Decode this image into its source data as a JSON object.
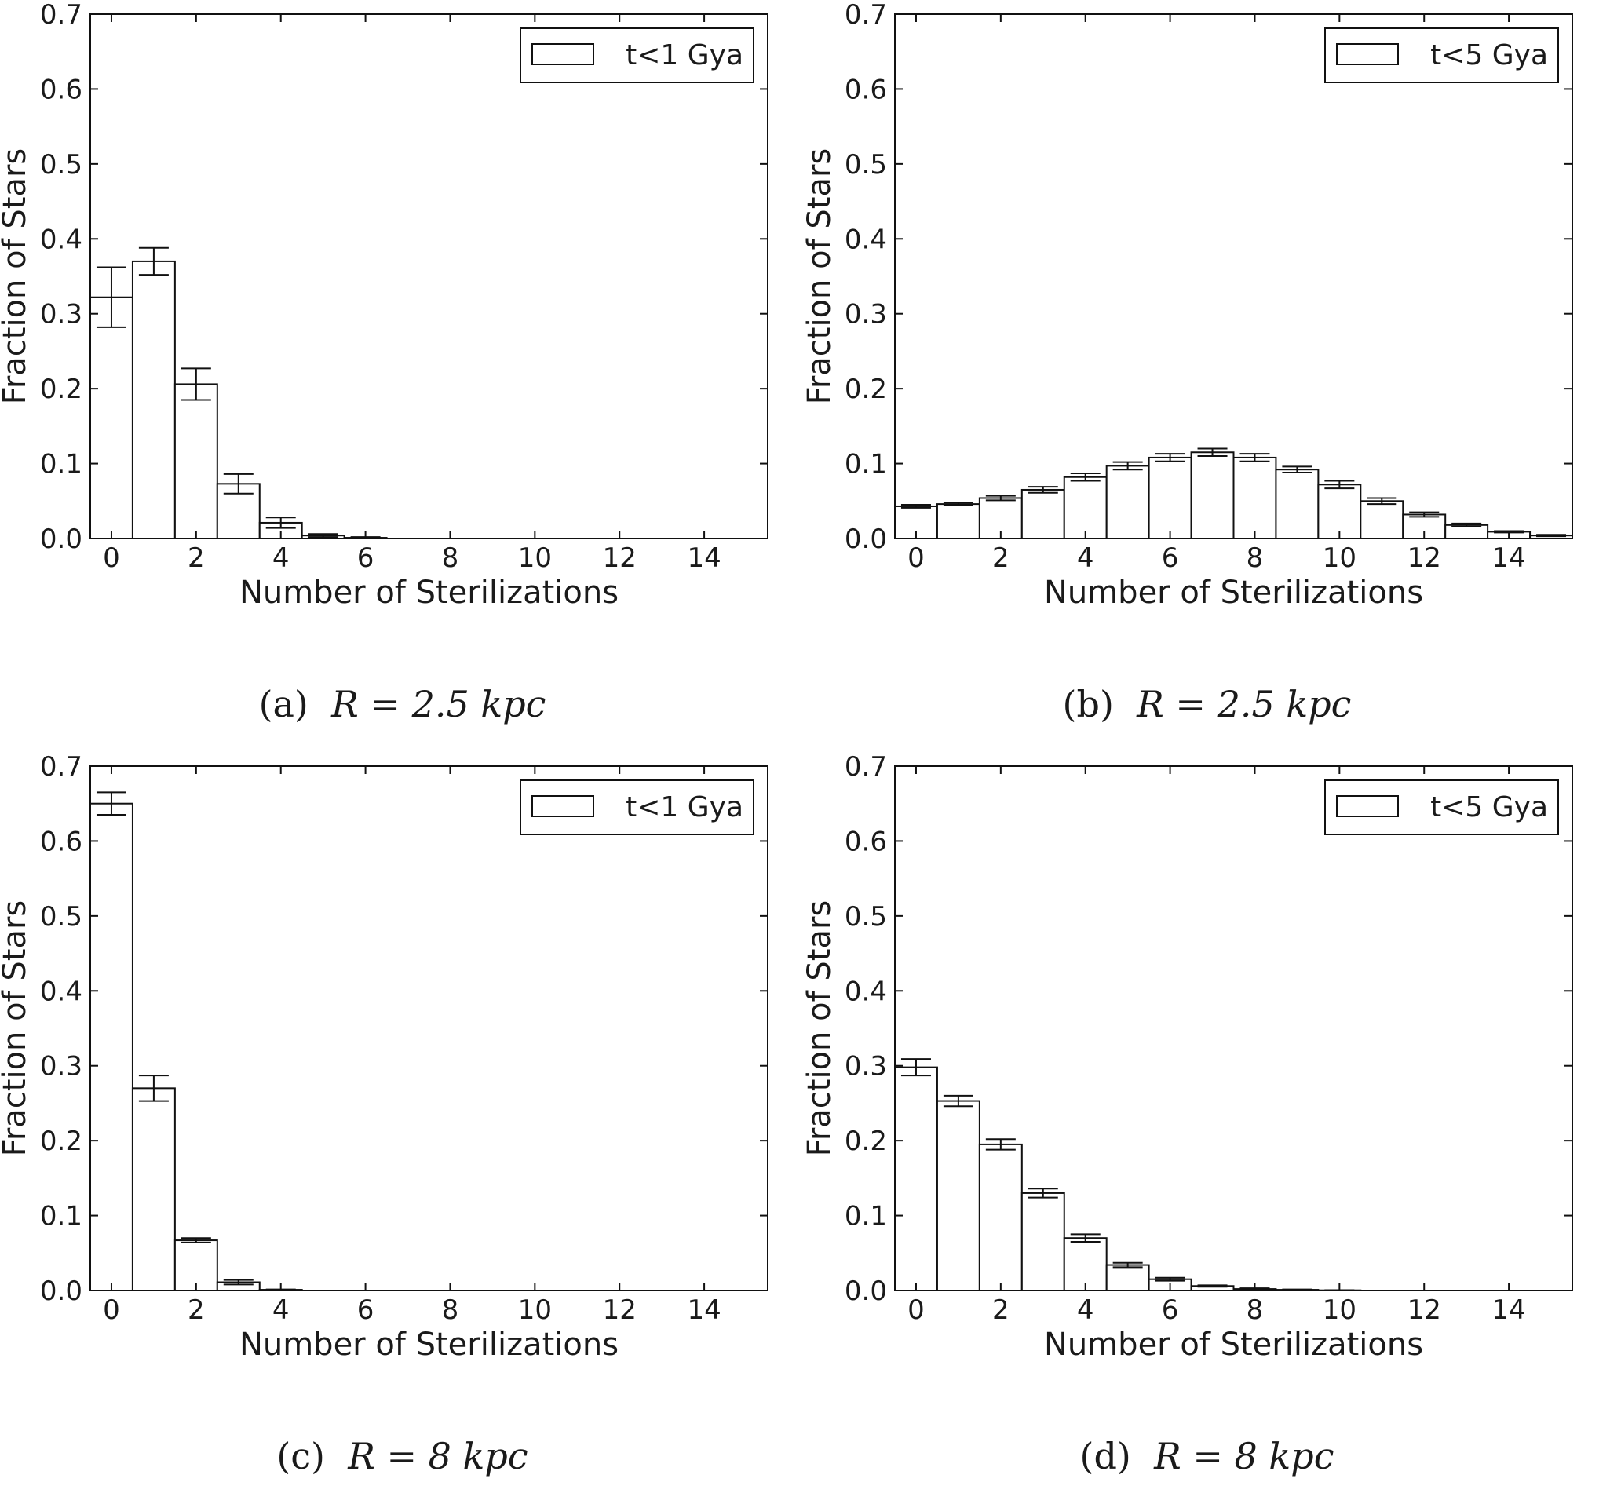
{
  "chart_data": [
    {
      "type": "bar",
      "panel_label": "(a)",
      "caption": "R = 2.5 kpc",
      "legend": "t<1 Gya",
      "legend_position": "top-right",
      "xlabel": "Number of Sterilizations",
      "ylabel": "Fraction of Stars",
      "xlim": [
        -0.5,
        15.5
      ],
      "ylim": [
        0.0,
        0.7
      ],
      "x": [
        0,
        1,
        2,
        3,
        4,
        5,
        6
      ],
      "values": [
        0.322,
        0.37,
        0.206,
        0.073,
        0.021,
        0.004,
        0.001
      ],
      "errors": [
        0.04,
        0.018,
        0.021,
        0.013,
        0.007,
        0.002,
        0.001
      ],
      "xticks": [
        0,
        2,
        4,
        6,
        8,
        10,
        12,
        14
      ],
      "yticks": [
        0.0,
        0.1,
        0.2,
        0.3,
        0.4,
        0.5,
        0.6,
        0.7
      ],
      "ytick_labels": [
        "0.0",
        "0.1",
        "0.2",
        "0.3",
        "0.4",
        "0.5",
        "0.6",
        "0.7"
      ]
    },
    {
      "type": "bar",
      "panel_label": "(b)",
      "caption": "R = 2.5 kpc",
      "legend": "t<5 Gya",
      "legend_position": "top-right",
      "xlabel": "Number of Sterilizations",
      "ylabel": "Fraction of Stars",
      "xlim": [
        -0.5,
        15.5
      ],
      "ylim": [
        0.0,
        0.7
      ],
      "x": [
        0,
        1,
        2,
        3,
        4,
        5,
        6,
        7,
        8,
        9,
        10,
        11,
        12,
        13,
        14,
        15
      ],
      "values": [
        0.043,
        0.046,
        0.054,
        0.065,
        0.082,
        0.097,
        0.108,
        0.115,
        0.108,
        0.092,
        0.072,
        0.05,
        0.032,
        0.018,
        0.009,
        0.004
      ],
      "errors": [
        0.002,
        0.002,
        0.003,
        0.004,
        0.005,
        0.005,
        0.005,
        0.005,
        0.005,
        0.004,
        0.005,
        0.004,
        0.003,
        0.002,
        0.001,
        0.001
      ],
      "xticks": [
        0,
        2,
        4,
        6,
        8,
        10,
        12,
        14
      ],
      "yticks": [
        0.0,
        0.1,
        0.2,
        0.3,
        0.4,
        0.5,
        0.6,
        0.7
      ],
      "ytick_labels": [
        "0.0",
        "0.1",
        "0.2",
        "0.3",
        "0.4",
        "0.5",
        "0.6",
        "0.7"
      ]
    },
    {
      "type": "bar",
      "panel_label": "(c)",
      "caption": "R = 8 kpc",
      "legend": "t<1 Gya",
      "legend_position": "top-right",
      "xlabel": "Number of Sterilizations",
      "ylabel": "Fraction of Stars",
      "xlim": [
        -0.5,
        15.5
      ],
      "ylim": [
        0.0,
        0.7
      ],
      "x": [
        0,
        1,
        2,
        3,
        4
      ],
      "values": [
        0.65,
        0.27,
        0.067,
        0.011,
        0.001
      ],
      "errors": [
        0.015,
        0.017,
        0.003,
        0.003,
        0.0005
      ],
      "xticks": [
        0,
        2,
        4,
        6,
        8,
        10,
        12,
        14
      ],
      "yticks": [
        0.0,
        0.1,
        0.2,
        0.3,
        0.4,
        0.5,
        0.6,
        0.7
      ],
      "ytick_labels": [
        "0.0",
        "0.1",
        "0.2",
        "0.3",
        "0.4",
        "0.5",
        "0.6",
        "0.7"
      ]
    },
    {
      "type": "bar",
      "panel_label": "(d)",
      "caption": "R = 8 kpc",
      "legend": "t<5 Gya",
      "legend_position": "top-right",
      "xlabel": "Number of Sterilizations",
      "ylabel": "Fraction of Stars",
      "xlim": [
        -0.5,
        15.5
      ],
      "ylim": [
        0.0,
        0.7
      ],
      "x": [
        0,
        1,
        2,
        3,
        4,
        5,
        6,
        7,
        8,
        9,
        10
      ],
      "values": [
        0.298,
        0.253,
        0.195,
        0.13,
        0.07,
        0.034,
        0.015,
        0.006,
        0.002,
        0.001,
        0.0003
      ],
      "errors": [
        0.011,
        0.007,
        0.007,
        0.006,
        0.005,
        0.003,
        0.002,
        0.001,
        0.001,
        0.0005,
        0.0002
      ],
      "xticks": [
        0,
        2,
        4,
        6,
        8,
        10,
        12,
        14
      ],
      "yticks": [
        0.0,
        0.1,
        0.2,
        0.3,
        0.4,
        0.5,
        0.6,
        0.7
      ],
      "ytick_labels": [
        "0.0",
        "0.1",
        "0.2",
        "0.3",
        "0.4",
        "0.5",
        "0.6",
        "0.7"
      ]
    }
  ]
}
